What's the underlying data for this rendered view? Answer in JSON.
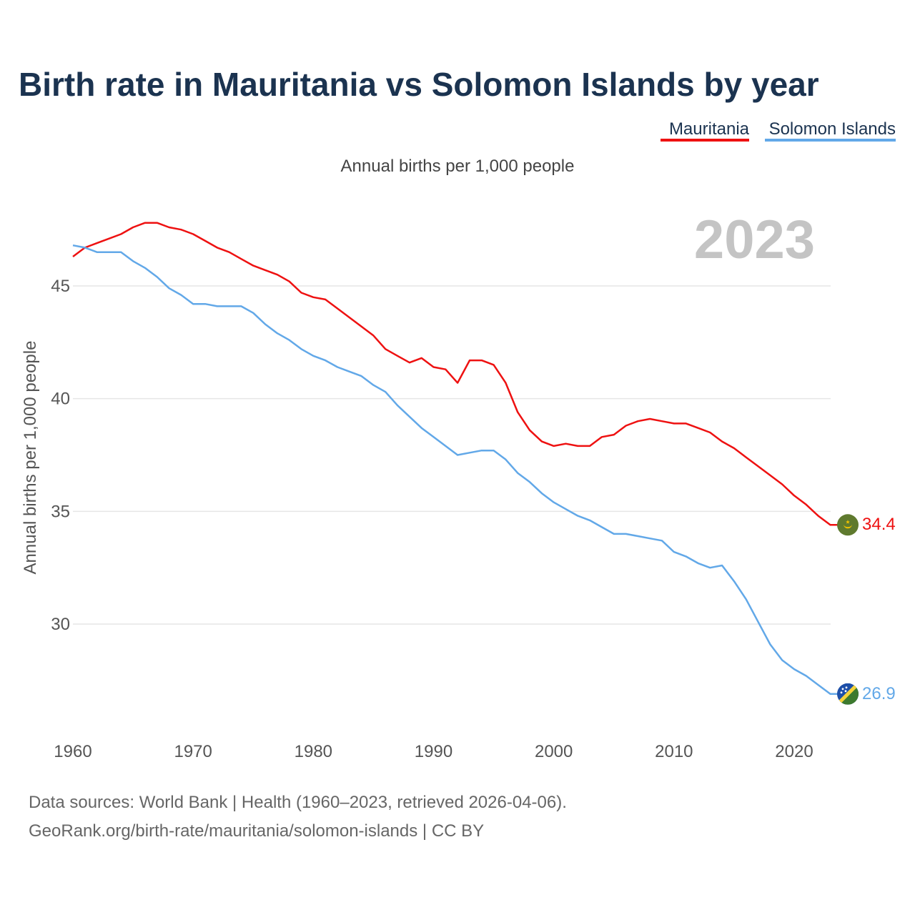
{
  "chart_data": {
    "type": "line",
    "title": "Birth rate in Mauritania vs Solomon Islands by year",
    "subtitle": "Annual births per 1,000 people",
    "ylabel": "Annual births per 1,000 people",
    "xlabel": "",
    "current_year": "2023",
    "x_ticks": [
      1960,
      1970,
      1980,
      1990,
      2000,
      2010,
      2020
    ],
    "y_ticks": [
      30,
      35,
      40,
      45
    ],
    "xlim": [
      1960,
      2023
    ],
    "ylim": [
      26.1,
      48.5
    ],
    "grid": true,
    "legend_position": "top-right",
    "x": [
      1960,
      1961,
      1962,
      1963,
      1964,
      1965,
      1966,
      1967,
      1968,
      1969,
      1970,
      1971,
      1972,
      1973,
      1974,
      1975,
      1976,
      1977,
      1978,
      1979,
      1980,
      1981,
      1982,
      1983,
      1984,
      1985,
      1986,
      1987,
      1988,
      1989,
      1990,
      1991,
      1992,
      1993,
      1994,
      1995,
      1996,
      1997,
      1998,
      1999,
      2000,
      2001,
      2002,
      2003,
      2004,
      2005,
      2006,
      2007,
      2008,
      2009,
      2010,
      2011,
      2012,
      2013,
      2014,
      2015,
      2016,
      2017,
      2018,
      2019,
      2020,
      2021,
      2022,
      2023
    ],
    "series": [
      {
        "name": "Mauritania",
        "color": "#ee1111",
        "end_label": "34.4",
        "values": [
          46.3,
          46.7,
          46.9,
          47.1,
          47.3,
          47.6,
          47.8,
          47.8,
          47.6,
          47.5,
          47.3,
          47.0,
          46.7,
          46.5,
          46.2,
          45.9,
          45.7,
          45.5,
          45.2,
          44.7,
          44.5,
          44.4,
          44.0,
          43.6,
          43.2,
          42.8,
          42.2,
          41.9,
          41.6,
          41.8,
          41.4,
          41.3,
          40.7,
          41.7,
          41.7,
          41.5,
          40.7,
          39.4,
          38.6,
          38.1,
          37.9,
          38.0,
          37.9,
          37.9,
          38.3,
          38.4,
          38.8,
          39.0,
          39.1,
          39.0,
          38.9,
          38.9,
          38.7,
          38.5,
          38.1,
          37.8,
          37.4,
          37.0,
          36.6,
          36.2,
          35.7,
          35.3,
          34.8,
          34.4
        ]
      },
      {
        "name": "Solomon Islands",
        "color": "#62a8e8",
        "end_label": "26.9",
        "values": [
          46.8,
          46.7,
          46.5,
          46.5,
          46.5,
          46.1,
          45.8,
          45.4,
          44.9,
          44.6,
          44.2,
          44.2,
          44.1,
          44.1,
          44.1,
          43.8,
          43.3,
          42.9,
          42.6,
          42.2,
          41.9,
          41.7,
          41.4,
          41.2,
          41.0,
          40.6,
          40.3,
          39.7,
          39.2,
          38.7,
          38.3,
          37.9,
          37.5,
          37.6,
          37.7,
          37.7,
          37.3,
          36.7,
          36.3,
          35.8,
          35.4,
          35.1,
          34.8,
          34.6,
          34.3,
          34.0,
          34.0,
          33.9,
          33.8,
          33.7,
          33.2,
          33.0,
          32.7,
          32.5,
          32.6,
          31.9,
          31.1,
          30.1,
          29.1,
          28.4,
          28.0,
          27.7,
          27.3,
          26.9
        ]
      }
    ],
    "source_line_1": "Data sources: World Bank | Health (1960–2023, retrieved 2026-04-06).",
    "source_line_2": "GeoRank.org/birth-rate/mauritania/solomon-islands | CC BY"
  }
}
